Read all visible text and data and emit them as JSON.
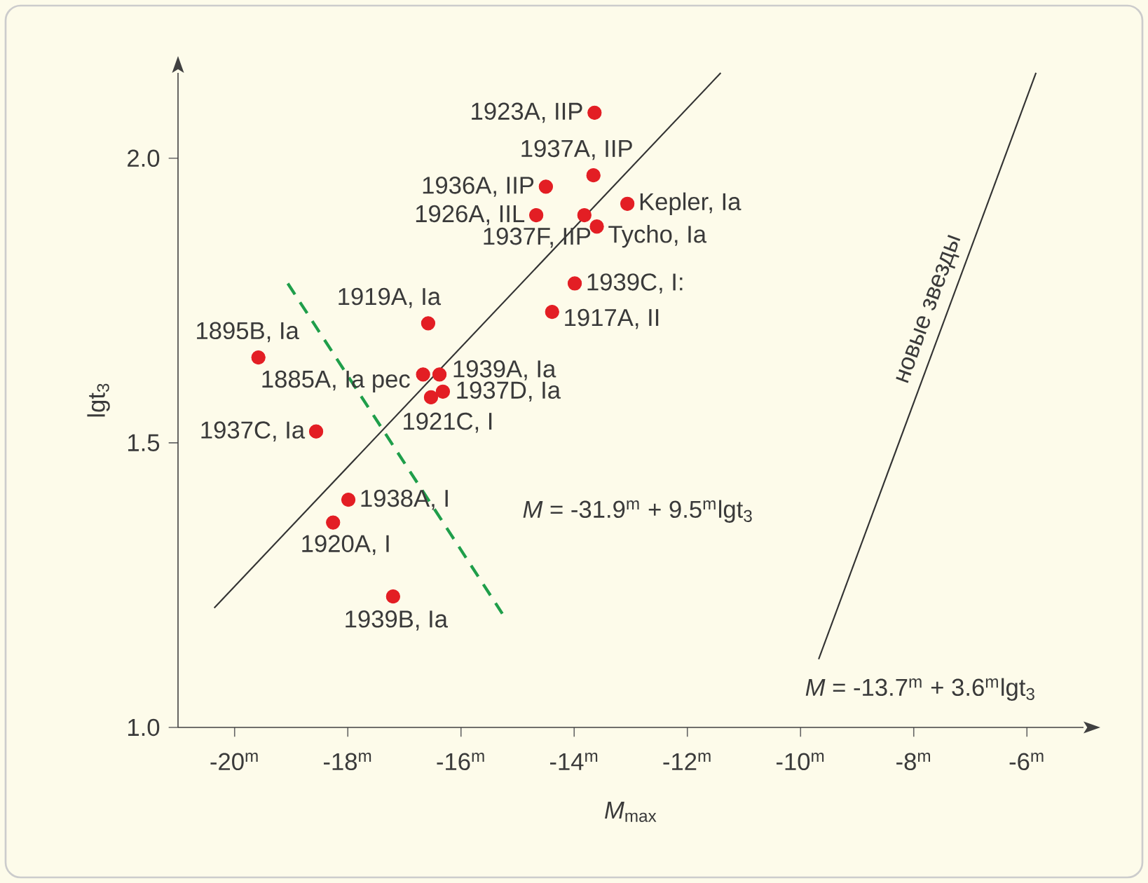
{
  "chart_data": {
    "type": "scatter",
    "xlabel": "*M*$_{max}$",
    "ylabel": "lgt$_{3}$",
    "xlim": [
      -21,
      -5
    ],
    "ylim": [
      1,
      2.15
    ],
    "xticks": [
      {
        "value": -20,
        "label": "-20$^{m}$"
      },
      {
        "value": -18,
        "label": "-18$^{m}$"
      },
      {
        "value": -16,
        "label": "-16$^{m}$"
      },
      {
        "value": -14,
        "label": "-14$^{m}$"
      },
      {
        "value": -12,
        "label": "-12$^{m}$"
      },
      {
        "value": -10,
        "label": "-10$^{m}$"
      },
      {
        "value": -8,
        "label": "-8$^{m}$"
      },
      {
        "value": -6,
        "label": "-6$^{m}$"
      }
    ],
    "yticks": [
      {
        "value": 1,
        "label": "1.0"
      },
      {
        "value": 1.5,
        "label": "1.5"
      },
      {
        "value": 2,
        "label": "2.0"
      }
    ],
    "series": [
      {
        "color": "#e31e24",
        "x": [
          -13.64,
          -13.66,
          -14.5,
          -14.67,
          -13.82,
          -13.6,
          -13.06,
          -13.99,
          -14.39,
          -16.58,
          -19.58,
          -16.67,
          -16.38,
          -16.53,
          -16.32,
          -18.56,
          -17.99,
          -18.26,
          -17.2
        ],
        "values": [
          2.08,
          1.97,
          1.95,
          1.9,
          1.9,
          1.88,
          1.92,
          1.78,
          1.73,
          1.71,
          1.65,
          1.62,
          1.62,
          1.58,
          1.59,
          1.52,
          1.4,
          1.36,
          1.23
        ]
      },
      {
        "type": "line",
        "color": "#333333",
        "x": [
          -20.36,
          -11.41
        ],
        "values": [
          1.21,
          2.15
        ]
      },
      {
        "type": "line",
        "name": "новые звезды",
        "color": "#333333",
        "x": [
          -9.68,
          -5.84
        ],
        "values": [
          1.12,
          2.15
        ]
      },
      {
        "type": "line",
        "color": "#1f9e4a",
        "line_style": "dashed",
        "x": [
          -19.06,
          -15.27
        ],
        "values": [
          1.78,
          1.2
        ]
      }
    ],
    "annotations": [
      {
        "text": "1923A, IIP",
        "x": -13.64,
        "y": 2.08
      },
      {
        "text": "1937A, IIP",
        "x": -13.66,
        "y": 1.97
      },
      {
        "text": "1936A, IIP",
        "x": -14.5,
        "y": 1.95
      },
      {
        "text": "1926A, IIL",
        "x": -14.67,
        "y": 1.9
      },
      {
        "text": "1937F, IIP",
        "x": -13.82,
        "y": 1.9
      },
      {
        "text": "Tycho, Ia",
        "x": -13.6,
        "y": 1.88
      },
      {
        "text": "Kepler, Ia",
        "x": -13.06,
        "y": 1.92
      },
      {
        "text": "1939C, I:",
        "x": -13.99,
        "y": 1.78
      },
      {
        "text": "1917A, II",
        "x": -14.39,
        "y": 1.73
      },
      {
        "text": "1919A, Ia",
        "x": -16.58,
        "y": 1.71
      },
      {
        "text": "1895B, Ia",
        "x": -19.58,
        "y": 1.65
      },
      {
        "text": "1885A, Ia pec",
        "x": -16.67,
        "y": 1.62
      },
      {
        "text": "1939A, Ia",
        "x": -16.38,
        "y": 1.62
      },
      {
        "text": "1921C, I",
        "x": -16.53,
        "y": 1.58
      },
      {
        "text": "1937D, Ia",
        "x": -16.32,
        "y": 1.59
      },
      {
        "text": "1937C, Ia",
        "x": -18.56,
        "y": 1.52
      },
      {
        "text": "1938A, I",
        "x": -17.99,
        "y": 1.4
      },
      {
        "text": "1920A, I",
        "x": -18.26,
        "y": 1.36
      },
      {
        "text": "1939B, Ia",
        "x": -17.2,
        "y": 1.23
      },
      "*M* = -31.9$^{m}$ + 9.5$^{m}$lgt$_{3}$",
      "*M* = -13.7$^{m}$ + 3.6$^{m}$lgt$_{3}$"
    ]
  }
}
